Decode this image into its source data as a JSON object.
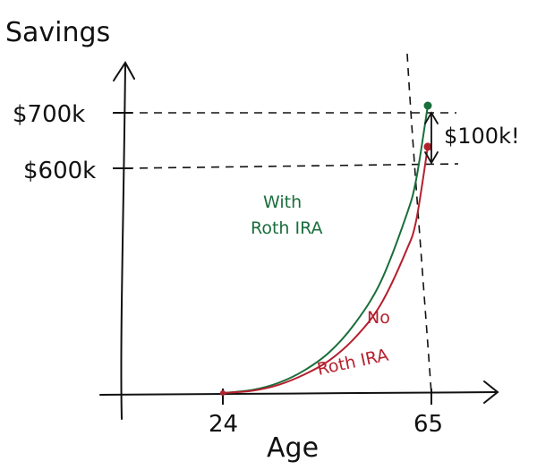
{
  "chart_data": {
    "type": "line",
    "title": "",
    "ylabel": "Savings",
    "xlabel": "Age",
    "x_ticks": [
      "24",
      "65"
    ],
    "y_ticks": [
      "$700k",
      "$600k"
    ],
    "xlim": [
      24,
      65
    ],
    "ylim": [
      0,
      700000
    ],
    "series": [
      {
        "name_lines": [
          "With",
          "Roth IRA"
        ],
        "color": "#1a6e3c",
        "x": [
          24,
          30,
          35,
          40,
          45,
          50,
          55,
          60,
          62,
          64.3
        ],
        "y": [
          0,
          8000,
          25000,
          55000,
          100000,
          170000,
          270000,
          430000,
          520000,
          700000
        ]
      },
      {
        "name_lines": [
          "No",
          "Roth IRA"
        ],
        "color": "#b5202e",
        "x": [
          24,
          30,
          35,
          40,
          45,
          50,
          55,
          60,
          62,
          64.3
        ],
        "y": [
          0,
          6000,
          20000,
          45000,
          80000,
          135000,
          215000,
          345000,
          420000,
          600000
        ]
      }
    ],
    "annotation": "$100k!",
    "grid": false,
    "legend": "inline labels"
  }
}
